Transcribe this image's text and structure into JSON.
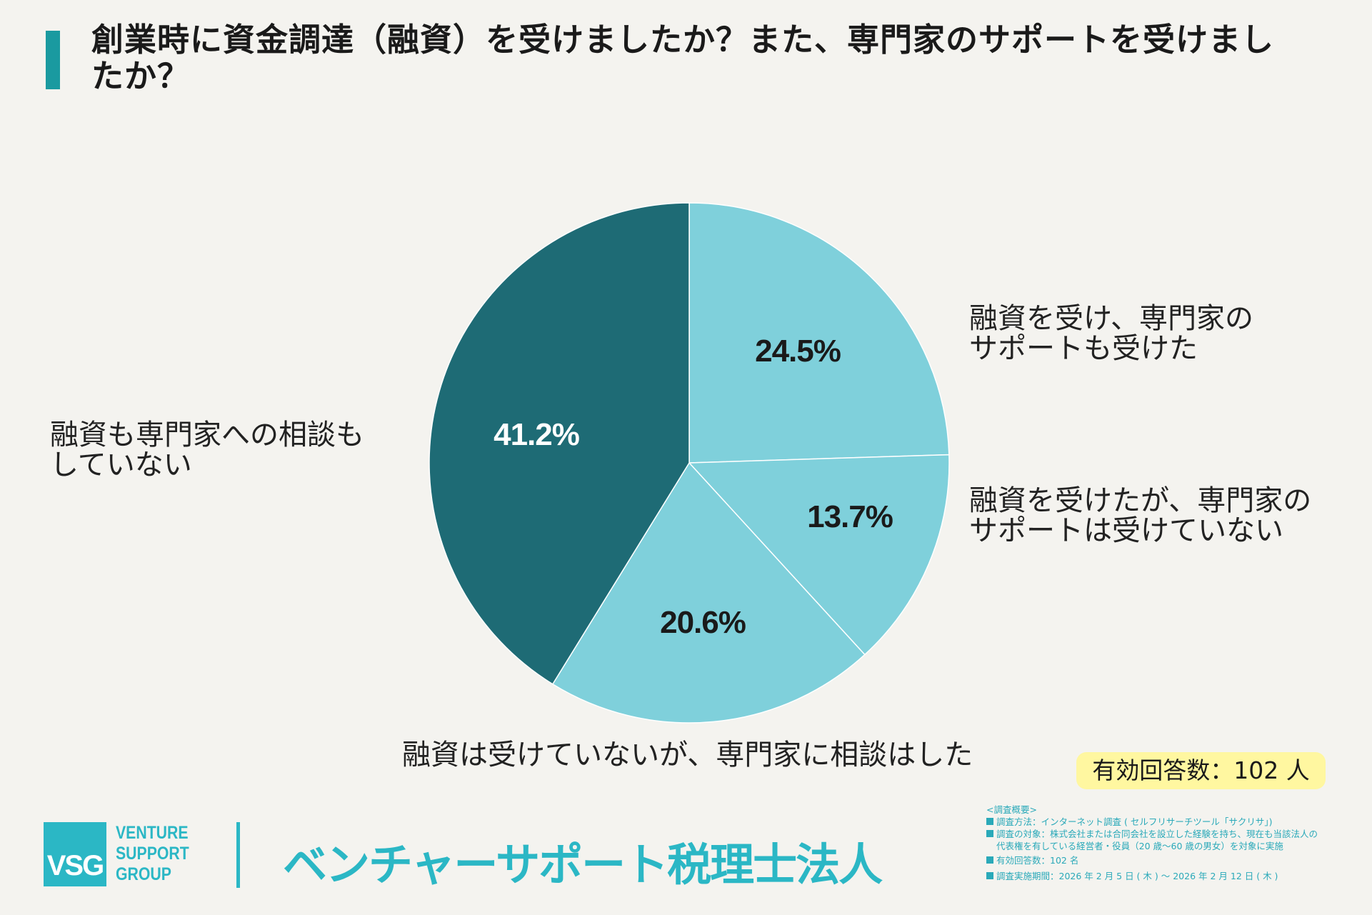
{
  "title": "創業時に資金調達（融資）を受けましたか？また、専門家のサポートを受けましたか？",
  "colors": {
    "accent": "#1a9aa0",
    "light": "#7fd0db",
    "dark": "#1e6b75",
    "brand": "#2bb7c5",
    "badge": "#fff7a0"
  },
  "chart_data": {
    "type": "pie",
    "unit": "%",
    "start": "top",
    "direction": "clockwise",
    "slices": [
      {
        "label_lines": [
          "融資を受け、専門家の",
          "サポートも受けた"
        ],
        "value": 24.5,
        "display": "24.5%",
        "color": "#7fd0db"
      },
      {
        "label_lines": [
          "融資を受けたが、専門家の",
          "サポートは受けていない"
        ],
        "value": 13.7,
        "display": "13.7%",
        "color": "#7fd0db"
      },
      {
        "label_lines": [
          "融資は受けていないが、専門家に相談はした"
        ],
        "value": 20.6,
        "display": "20.6%",
        "color": "#7fd0db"
      },
      {
        "label_lines": [
          "融資も専門家への相談も",
          "していない"
        ],
        "value": 41.2,
        "display": "41.2%",
        "color": "#1e6b75"
      }
    ]
  },
  "badge": "有効回答数：102 人",
  "logo": {
    "mark": "VSG",
    "words": [
      "VENTURE",
      "SUPPORT",
      "GROUP"
    ],
    "company": "ベンチャーサポート税理士法人"
  },
  "notes": {
    "heading": "<調査概要>",
    "items": [
      "調査方法：インターネット調査 ( セルフリサーチツール「サクリサ」)",
      "調査の対象：株式会社または合同会社を設立した経験を持ち、現在も当該法人の",
      "有効回答数：102 名",
      "調査実施期間：2026 年 2 月 5 日 ( 木 ) ～ 2026 年 2 月 12 日 ( 木 )"
    ],
    "item2_cont": "代表権を有している経営者・役員（20 歳～60 歳の男女）を対象に実施"
  }
}
